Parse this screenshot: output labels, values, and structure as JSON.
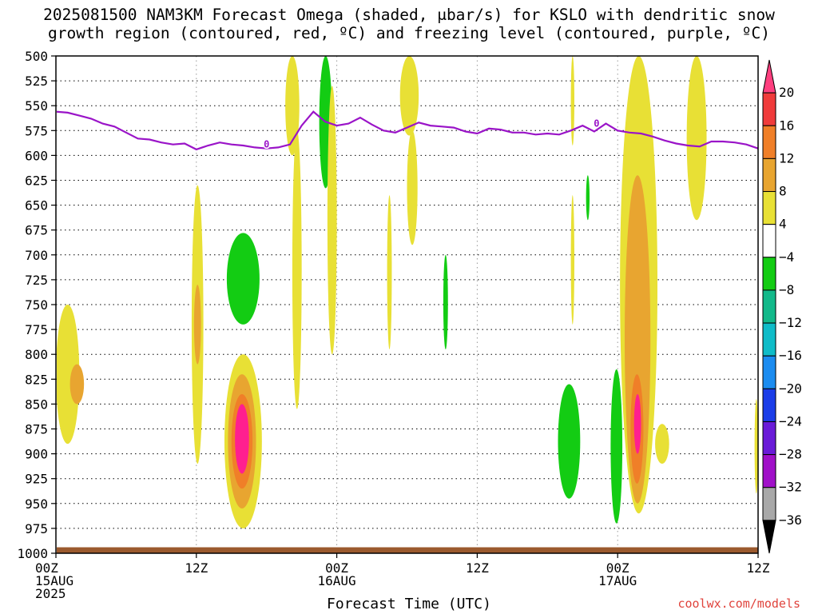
{
  "title_line1": "2025081500 NAM3KM Forecast Omega (shaded, μbar/s) for KSLO with dendritic snow",
  "title_line2": "growth region (contoured, red, ºC) and freezing level (contoured, purple, ºC)",
  "xlabel": "Forecast Time (UTC)",
  "credit": "coolwx.com/models",
  "chart_data": {
    "type": "heatmap",
    "title": "2025081500 NAM3KM Forecast Omega (shaded, μbar/s) for KSLO with dendritic snow growth region (contoured, red, ºC) and freezing level (contoured, purple, ºC)",
    "xlabel": "Forecast Time (UTC)",
    "ylabel": "",
    "y_ticks": [
      500,
      525,
      550,
      575,
      600,
      625,
      650,
      675,
      700,
      725,
      750,
      775,
      800,
      825,
      850,
      875,
      900,
      925,
      950,
      975,
      1000
    ],
    "ylim": [
      1000,
      500
    ],
    "xlim": [
      0,
      60
    ],
    "x_ticks": [
      {
        "hour": 0,
        "lines": [
          "00Z",
          "15AUG",
          "2025"
        ]
      },
      {
        "hour": 12,
        "lines": [
          "12Z"
        ]
      },
      {
        "hour": 24,
        "lines": [
          "00Z",
          "16AUG"
        ]
      },
      {
        "hour": 36,
        "lines": [
          "12Z"
        ]
      },
      {
        "hour": 48,
        "lines": [
          "00Z",
          "17AUG"
        ]
      },
      {
        "hour": 60,
        "lines": [
          "12Z"
        ]
      }
    ],
    "grid": true,
    "colorbar": {
      "labels": [
        "20",
        "16",
        "12",
        "8",
        "4",
        "−4",
        "−8",
        "−12",
        "−16",
        "−20",
        "−24",
        "−28",
        "−32",
        "−36"
      ],
      "colors": [
        "#ff3f7f",
        "#f03b3b",
        "#f07f28",
        "#e8a530",
        "#e8e035",
        "#ffffff",
        "#13cc13",
        "#12b98a",
        "#0fbcc8",
        "#1b8cf0",
        "#1b3de8",
        "#6a1bd8",
        "#a010c8",
        "#a8a8a8",
        "#000000"
      ]
    },
    "freezing_level_label": "0",
    "freezing_level": {
      "hours": [
        0,
        1,
        2,
        3,
        4,
        5,
        6,
        7,
        8,
        9,
        10,
        11,
        12,
        13,
        14,
        15,
        16,
        17,
        18,
        19,
        20,
        21,
        22,
        23,
        24,
        25,
        26,
        27,
        28,
        29,
        30,
        31,
        32,
        33,
        34,
        35,
        36,
        37,
        38,
        39,
        40,
        41,
        42,
        43,
        44,
        45,
        46,
        47,
        48,
        49,
        50,
        51,
        52,
        53,
        54,
        55,
        56,
        57,
        58,
        59,
        60
      ],
      "pressure": [
        556,
        557,
        560,
        563,
        568,
        571,
        577,
        583,
        584,
        587,
        589,
        588,
        594,
        590,
        587,
        589,
        590,
        592,
        593,
        592,
        589,
        570,
        556,
        566,
        570,
        568,
        562,
        569,
        575,
        577,
        572,
        567,
        570,
        571,
        572,
        576,
        578,
        573,
        574,
        577,
        577,
        579,
        578,
        579,
        575,
        570,
        576,
        568,
        575,
        577,
        578,
        581,
        585,
        588,
        590,
        591,
        586,
        586,
        587,
        589,
        593
      ]
    },
    "omega_regions": [
      {
        "category": "4 to 8",
        "t": [
          0,
          2
        ],
        "p": [
          750,
          890
        ]
      },
      {
        "category": "8 to 12",
        "t": [
          1.2,
          2.4
        ],
        "p": [
          810,
          850
        ]
      },
      {
        "category": "4 to 8",
        "t": [
          11.6,
          12.6
        ],
        "p": [
          630,
          910
        ]
      },
      {
        "category": "8 to 12",
        "t": [
          11.8,
          12.4
        ],
        "p": [
          730,
          810
        ]
      },
      {
        "category": "-8 to -4",
        "t": [
          14.6,
          17.4
        ],
        "p": [
          678,
          770
        ]
      },
      {
        "category": "4 to 8",
        "t": [
          14.4,
          17.6
        ],
        "p": [
          800,
          975
        ]
      },
      {
        "category": "8 to 12",
        "t": [
          14.7,
          17.1
        ],
        "p": [
          820,
          955
        ]
      },
      {
        "category": "12 to 16",
        "t": [
          15,
          16.8
        ],
        "p": [
          840,
          935
        ]
      },
      {
        "category": "16 to 20",
        "t": [
          15.3,
          16.5
        ],
        "p": [
          850,
          920
        ]
      },
      {
        "category": "4 to 8",
        "t": [
          19.6,
          20.8
        ],
        "p": [
          500,
          600
        ]
      },
      {
        "category": "4 to 8",
        "t": [
          20.2,
          21
        ],
        "p": [
          575,
          855
        ]
      },
      {
        "category": "-8 to -4",
        "t": [
          22.5,
          23.6
        ],
        "p": [
          500,
          633
        ]
      },
      {
        "category": "4 to 8",
        "t": [
          23.2,
          24
        ],
        "p": [
          530,
          800
        ]
      },
      {
        "category": "4 to 8",
        "t": [
          29.4,
          31
        ],
        "p": [
          500,
          580
        ]
      },
      {
        "category": "4 to 8",
        "t": [
          30,
          30.9
        ],
        "p": [
          575,
          690
        ]
      },
      {
        "category": "4 to 8",
        "t": [
          28.3,
          28.7
        ],
        "p": [
          640,
          795
        ]
      },
      {
        "category": "-8 to -4",
        "t": [
          33.1,
          33.5
        ],
        "p": [
          700,
          795
        ]
      },
      {
        "category": "-8 to -4",
        "t": [
          42.9,
          44.8
        ],
        "p": [
          830,
          945
        ]
      },
      {
        "category": "-8 to -4",
        "t": [
          45.3,
          45.6
        ],
        "p": [
          620,
          665
        ]
      },
      {
        "category": "4 to 8",
        "t": [
          44,
          44.3
        ],
        "p": [
          500,
          590
        ]
      },
      {
        "category": "4 to 8",
        "t": [
          44,
          44.3
        ],
        "p": [
          640,
          770
        ]
      },
      {
        "category": "-8 to -4",
        "t": [
          47.4,
          48.4
        ],
        "p": [
          815,
          970
        ]
      },
      {
        "category": "4 to 8",
        "t": [
          48.2,
          51.4
        ],
        "p": [
          500,
          960
        ]
      },
      {
        "category": "8 to 12",
        "t": [
          48.6,
          50.8
        ],
        "p": [
          620,
          950
        ]
      },
      {
        "category": "12 to 16",
        "t": [
          49.1,
          50.2
        ],
        "p": [
          820,
          930
        ]
      },
      {
        "category": "16 to 20",
        "t": [
          49.4,
          50
        ],
        "p": [
          840,
          900
        ]
      },
      {
        "category": "4 to 8",
        "t": [
          51.2,
          52.4
        ],
        "p": [
          870,
          910
        ]
      },
      {
        "category": "4 to 8",
        "t": [
          53.9,
          55.6
        ],
        "p": [
          500,
          665
        ]
      },
      {
        "category": "4 to 8",
        "t": [
          59.7,
          60
        ],
        "p": [
          845,
          940
        ]
      }
    ],
    "terrain": {
      "label": "surface",
      "p_top": 994
    }
  }
}
